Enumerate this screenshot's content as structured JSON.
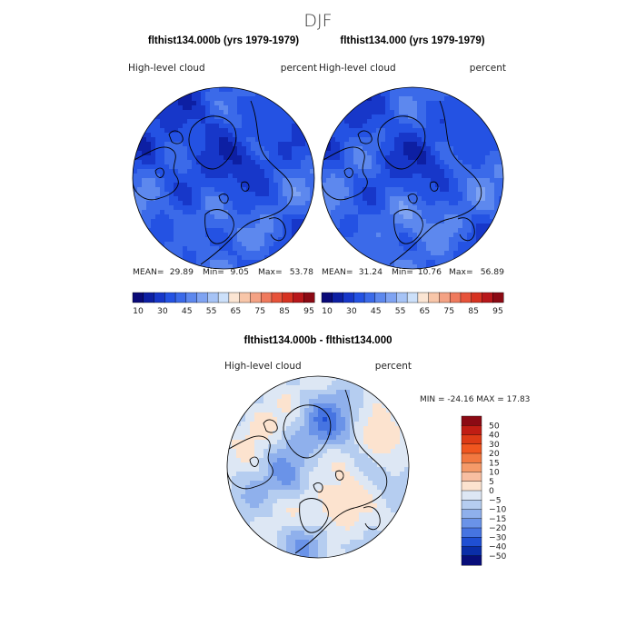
{
  "page_title": "DJF",
  "chart_data": [
    {
      "type": "heatmap",
      "projection": "north-polar-stereographic",
      "title": "flthist134.000b (yrs 1979-1979)",
      "variable": "High-level cloud",
      "units": "percent",
      "stats": {
        "mean_label": "MEAN=",
        "mean": "29.89",
        "min_label": "Min=",
        "min": "9.05",
        "max_label": "Max=",
        "max": "53.78"
      },
      "colorbar": {
        "levels": [
          10,
          15,
          20,
          25,
          30,
          35,
          40,
          45,
          50,
          55,
          60,
          65,
          70,
          75,
          80,
          85,
          90,
          95
        ],
        "tick_labels": [
          "10",
          "30",
          "45",
          "55",
          "65",
          "75",
          "85",
          "95"
        ],
        "colors": [
          "#0a0a78",
          "#0d1fa3",
          "#1737c9",
          "#2452e3",
          "#3b6ae9",
          "#5d88ee",
          "#7fa3f2",
          "#a6c3f6",
          "#cce0fa",
          "#fbe5d3",
          "#f8c6a9",
          "#f4a284",
          "#ef7a5d",
          "#e7533a",
          "#d63221",
          "#b8171a",
          "#8b0a14"
        ]
      },
      "typical_value": 29.89
    },
    {
      "type": "heatmap",
      "projection": "north-polar-stereographic",
      "title": "flthist134.000 (yrs 1979-1979)",
      "variable": "High-level cloud",
      "units": "percent",
      "stats": {
        "mean_label": "MEAN=",
        "mean": "31.24",
        "min_label": "Min=",
        "min": "10.76",
        "max_label": "Max=",
        "max": "56.89"
      },
      "colorbar": {
        "levels": [
          10,
          15,
          20,
          25,
          30,
          35,
          40,
          45,
          50,
          55,
          60,
          65,
          70,
          75,
          80,
          85,
          90,
          95
        ],
        "tick_labels": [
          "10",
          "30",
          "45",
          "55",
          "65",
          "75",
          "85",
          "95"
        ],
        "colors": [
          "#0a0a78",
          "#0d1fa3",
          "#1737c9",
          "#2452e3",
          "#3b6ae9",
          "#5d88ee",
          "#7fa3f2",
          "#a6c3f6",
          "#cce0fa",
          "#fbe5d3",
          "#f8c6a9",
          "#f4a284",
          "#ef7a5d",
          "#e7533a",
          "#d63221",
          "#b8171a",
          "#8b0a14"
        ]
      },
      "typical_value": 31.24
    },
    {
      "type": "heatmap",
      "projection": "north-polar-stereographic",
      "title": "flthist134.000b - flthist134.000",
      "variable": "High-level cloud",
      "units": "percent",
      "stats": {
        "text": "MIN = -24.16 MAX =  17.83",
        "min": -24.16,
        "max": 17.83
      },
      "colorbar": {
        "levels": [
          -50,
          -40,
          -30,
          -20,
          -15,
          -10,
          -5,
          0,
          5,
          10,
          15,
          20,
          30,
          40,
          50
        ],
        "tick_labels": [
          "50",
          "40",
          "30",
          "20",
          "15",
          "10",
          "5",
          "0",
          "−5",
          "−10",
          "−15",
          "−20",
          "−30",
          "−40",
          "−50"
        ],
        "colors": [
          "#8b0a14",
          "#c01d14",
          "#dd3b16",
          "#f0561f",
          "#f27840",
          "#f59a69",
          "#f8bea1",
          "#fce3cf",
          "#dde7f4",
          "#b5cdf0",
          "#8fb0ec",
          "#6a93e8",
          "#4674e1",
          "#1f4fd3",
          "#0a2ea8",
          "#080e7a"
        ]
      }
    }
  ]
}
